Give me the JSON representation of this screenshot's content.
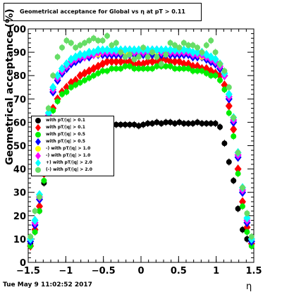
{
  "title": "Geometrical acceptance for Global vs  η at pT > 0.11",
  "date": "Tue May  9 11:02:52 2017",
  "chart_data": {
    "type": "scatter",
    "title": "Geometrical acceptance for Global vs  η at pT > 0.11",
    "xlabel": "η",
    "ylabel": "Geometrical acceptance (%)",
    "xlim": [
      -1.5,
      1.5
    ],
    "ylim": [
      0,
      100
    ],
    "x_ticks": [
      "−1.5",
      "−1",
      "−0.5",
      "0",
      "0.5",
      "1",
      "1.5"
    ],
    "y_ticks": [
      "0",
      "10",
      "20",
      "30",
      "40",
      "50",
      "60",
      "70",
      "80",
      "90",
      "100"
    ],
    "x": [
      -1.47,
      -1.41,
      -1.35,
      -1.29,
      -1.23,
      -1.17,
      -1.11,
      -1.05,
      -0.99,
      -0.93,
      -0.87,
      -0.81,
      -0.75,
      -0.69,
      -0.63,
      -0.57,
      -0.51,
      -0.45,
      -0.39,
      -0.33,
      -0.27,
      -0.21,
      -0.15,
      -0.09,
      -0.03,
      0.03,
      0.09,
      0.15,
      0.21,
      0.27,
      0.33,
      0.39,
      0.45,
      0.51,
      0.57,
      0.63,
      0.69,
      0.75,
      0.81,
      0.87,
      0.93,
      0.99,
      1.05,
      1.11,
      1.17,
      1.23,
      1.29,
      1.35,
      1.41,
      1.47
    ],
    "series": [
      {
        "name": "with pT/|q| > 0.1",
        "color": "#000000",
        "marker": "circle",
        "values": [
          8,
          13,
          22,
          34,
          47,
          58,
          59.5,
          60,
          60,
          60,
          59.5,
          59.5,
          59.5,
          59.5,
          59.5,
          59.5,
          59.5,
          59.5,
          59.5,
          59,
          59,
          59,
          59,
          59,
          58.5,
          59,
          59.5,
          59.5,
          60,
          59.5,
          60,
          60,
          59.5,
          60,
          59.5,
          59.5,
          59.5,
          60,
          59.5,
          59.5,
          59.5,
          59.5,
          58,
          51,
          43,
          35,
          23,
          14,
          10,
          8
        ]
      },
      {
        "name": "with pT/|q| > 0.1",
        "color": "#ff0000",
        "marker": "diamond",
        "values": [
          7,
          14,
          24,
          38,
          57,
          66,
          70,
          73,
          75,
          77,
          78,
          80,
          81,
          82,
          83,
          84,
          85,
          86,
          86,
          86,
          86,
          86,
          86,
          85,
          85,
          85,
          86,
          86,
          86,
          87,
          87,
          86,
          86,
          86,
          85,
          85,
          84,
          84,
          83,
          83,
          82,
          81,
          80,
          76,
          67,
          57,
          40,
          26,
          15,
          8
        ]
      },
      {
        "name": "with pT/|q| > 0.5",
        "color": "#00ee00",
        "marker": "circle",
        "values": [
          7,
          13,
          22,
          35,
          54,
          65,
          69,
          72,
          73,
          75,
          76,
          77,
          78,
          79,
          80,
          81,
          82,
          82,
          83,
          83,
          83,
          84,
          84,
          83,
          83,
          83,
          83,
          83,
          84,
          84,
          84,
          84,
          83,
          83,
          83,
          83,
          82,
          82,
          82,
          81,
          80,
          80,
          78,
          74,
          64,
          54,
          38,
          24,
          13,
          7
        ]
      },
      {
        "name": "with pT/|q| > 0.5",
        "color": "#0000ff",
        "marker": "diamond",
        "values": [
          9,
          16,
          27,
          42,
          62,
          73,
          78,
          81,
          83,
          85,
          86,
          87,
          88,
          88,
          89,
          89,
          89,
          89,
          89,
          89,
          89,
          89,
          89,
          89,
          89,
          89,
          89,
          89,
          89,
          89,
          89,
          89,
          89,
          89,
          89,
          89,
          88,
          88,
          88,
          87,
          86,
          85,
          83,
          80,
          70,
          60,
          45,
          30,
          17,
          9
        ]
      },
      {
        "name": "with pT/|q| > 1.0",
        "color": "#ffff00",
        "marker": "circle",
        "values": [
          10,
          17,
          28,
          43,
          63,
          74,
          79,
          82,
          84,
          86,
          87,
          88,
          88,
          89,
          89,
          89,
          90,
          90,
          90,
          90,
          90,
          90,
          90,
          90,
          90,
          90,
          90,
          90,
          90,
          90,
          90,
          90,
          90,
          90,
          90,
          90,
          89,
          89,
          88,
          88,
          87,
          86,
          84,
          80,
          71,
          61,
          46,
          31,
          18,
          10
        ]
      },
      {
        "name": "with pT/|q| > 1.0",
        "color": "#ff00ff",
        "marker": "diamond",
        "values": [
          10,
          17,
          28,
          43,
          63,
          74,
          79,
          82,
          84,
          86,
          87,
          88,
          88,
          89,
          89,
          90,
          90,
          90,
          90,
          90,
          90,
          91,
          91,
          90,
          90,
          90,
          90,
          91,
          91,
          90,
          90,
          90,
          90,
          90,
          90,
          90,
          89,
          89,
          89,
          88,
          87,
          86,
          84,
          80,
          71,
          61,
          46,
          31,
          18,
          10
        ]
      },
      {
        "name": "with pT/|q| > 2.0",
        "color": "#00ffff",
        "marker": "diamond",
        "values": [
          10,
          18,
          29,
          44,
          64,
          75,
          80,
          83,
          85,
          87,
          88,
          89,
          89,
          90,
          90,
          91,
          91,
          91,
          91,
          91,
          91,
          91,
          91,
          91,
          91,
          91,
          91,
          91,
          91,
          91,
          91,
          91,
          91,
          91,
          91,
          91,
          90,
          90,
          90,
          89,
          88,
          87,
          85,
          81,
          72,
          62,
          47,
          32,
          19,
          10
        ]
      },
      {
        "name": "with pT/|q| > 2.0",
        "color": "#66dd66",
        "marker": "circle",
        "values": [
          11,
          22,
          28,
          49,
          66,
          80,
          88,
          92,
          95,
          94,
          92,
          93,
          94,
          95,
          96,
          95,
          95,
          97,
          93,
          94,
          90,
          88,
          89,
          87,
          88,
          92,
          88,
          90,
          88,
          85,
          89,
          94,
          93,
          92,
          94,
          93,
          93,
          92,
          90,
          93,
          95,
          90,
          85,
          82,
          75,
          62,
          47,
          32,
          21,
          11
        ]
      }
    ]
  },
  "legend": [
    {
      "label": "with pT/|q| > 0.1",
      "color": "#000000",
      "marker": "circle"
    },
    {
      "label": "with pT/|q| > 0.1",
      "color": "#ff0000",
      "marker": "diamond"
    },
    {
      "label": "with pT/|q| > 0.5",
      "color": "#00ee00",
      "marker": "circle"
    },
    {
      "label": "with pT/|q| > 0.5",
      "color": "#0000ff",
      "marker": "diamond"
    },
    {
      "label": "-) with pT/|q| > 1.0",
      "color": "#ffff00",
      "marker": "circle"
    },
    {
      "label": "-) with pT/|q| > 1.0",
      "color": "#ff00ff",
      "marker": "diamond"
    },
    {
      "label": "+) with pT/|q| > 2.0",
      "color": "#00ffff",
      "marker": "diamond"
    },
    {
      "label": "(-) with pT/|q| > 2.0",
      "color": "#66dd66",
      "marker": "circle"
    }
  ]
}
